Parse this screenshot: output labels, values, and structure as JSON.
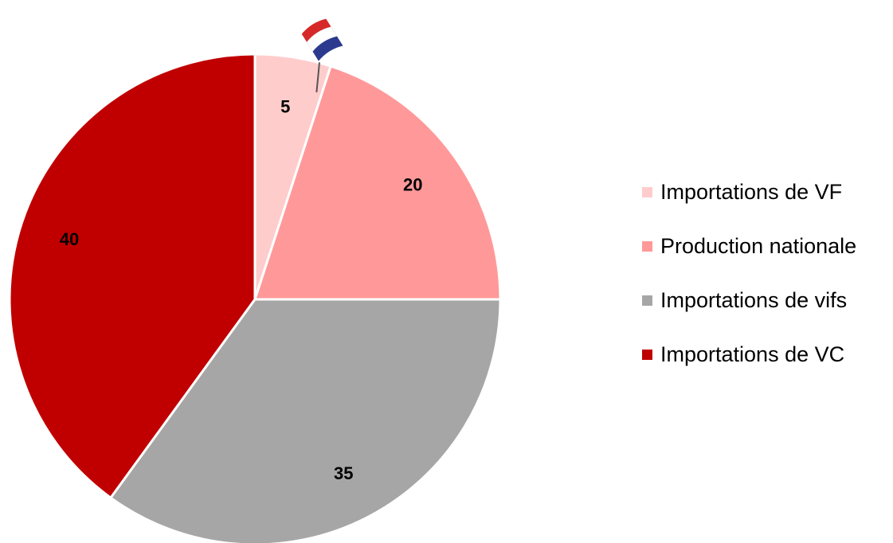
{
  "chart_data": {
    "type": "pie",
    "title": "",
    "start_angle_deg": 0,
    "direction": "clockwise",
    "legend_position": "right",
    "slices": [
      {
        "label": "Importations de VF",
        "value": 5,
        "value_label": "5",
        "color": "#ffcccc"
      },
      {
        "label": "Production nationale",
        "value": 20,
        "value_label": "20",
        "color": "#ff9999"
      },
      {
        "label": "Importations de vifs",
        "value": 35,
        "value_label": "35",
        "color": "#a6a6a6"
      },
      {
        "label": "Importations de VC",
        "value": 40,
        "value_label": "40",
        "color": "#c00000"
      }
    ],
    "annotations": [
      {
        "type": "icon",
        "name": "french-flag-icon",
        "attached_to": "Importations de VF"
      }
    ]
  }
}
